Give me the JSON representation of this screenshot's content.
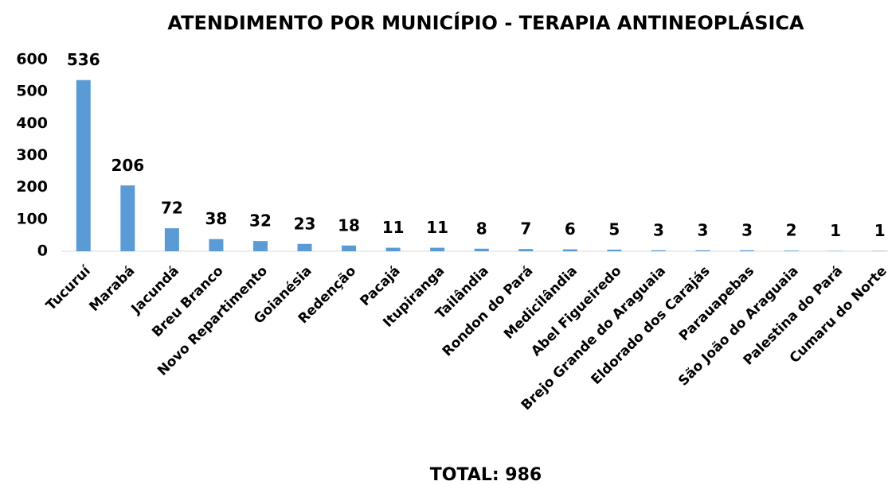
{
  "chart_data": {
    "type": "bar",
    "title": "ATENDIMENTO POR MUNICÍPIO - TERAPIA ANTINEOPLÁSICA",
    "categories": [
      "Tucuruí",
      "Marabá",
      "Jacundá",
      "Breu Branco",
      "Novo Repartimento",
      "Goianésia",
      "Redenção",
      "Pacajá",
      "Itupiranga",
      "Tailândia",
      "Rondon do Pará",
      "Medicilândia",
      "Abel Figueiredo",
      "Brejo Grande do Araguaia",
      "Eldorado dos Carajás",
      "Parauapebas",
      "São João do Araguaia",
      "Palestina do Pará",
      "Cumaru do Norte"
    ],
    "values": [
      536,
      206,
      72,
      38,
      32,
      23,
      18,
      11,
      11,
      8,
      7,
      6,
      5,
      3,
      3,
      3,
      2,
      1,
      1
    ],
    "color": "#5b9bd5",
    "ylim": [
      0,
      600
    ],
    "yticks": [
      0,
      100,
      200,
      300,
      400,
      500,
      600
    ],
    "grid": false,
    "annotation": "TOTAL: 986"
  }
}
